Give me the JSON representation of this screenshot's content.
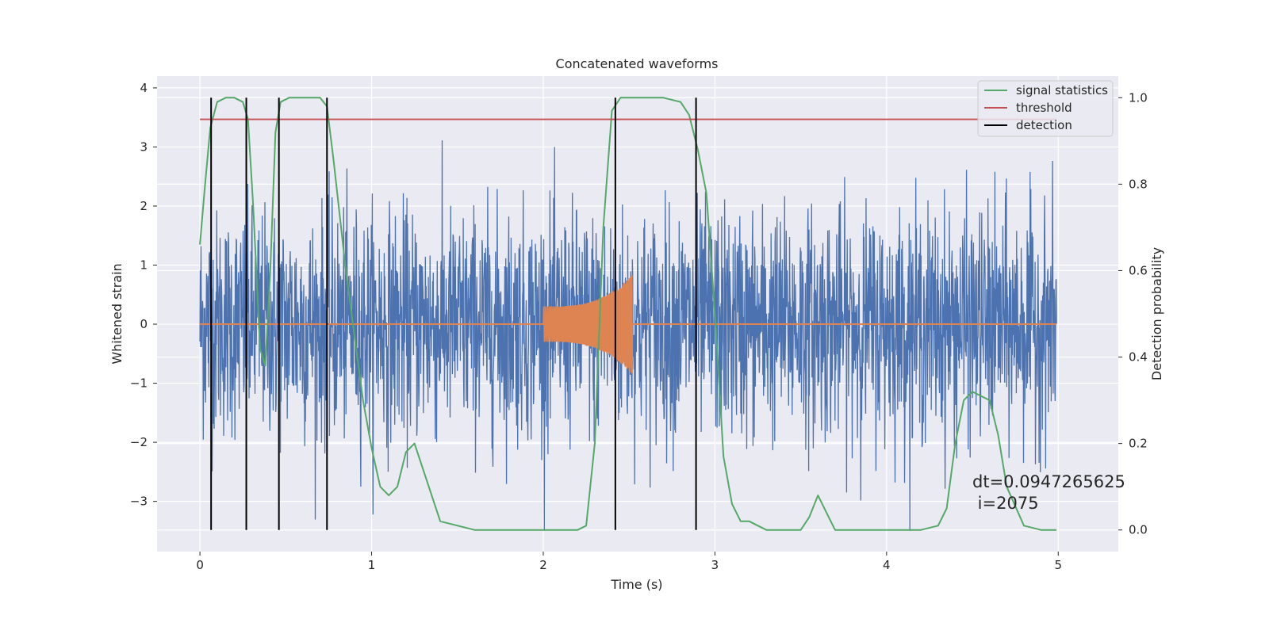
{
  "chart_data": {
    "type": "line",
    "title": "Concatenated waveforms",
    "xlabel": "Time (s)",
    "ylabel": "Whitened strain",
    "y2label": "Detection probability",
    "xlim": [
      -0.25,
      5.35
    ],
    "ylim": [
      -3.85,
      4.2
    ],
    "y2lim": [
      -0.05,
      1.05
    ],
    "x_ticks": [
      0,
      1,
      2,
      3,
      4,
      5
    ],
    "x_tick_labels": [
      "0",
      "1",
      "2",
      "3",
      "4",
      "5"
    ],
    "y_ticks": [
      4,
      3,
      2,
      1,
      0,
      -1,
      -2,
      -3
    ],
    "y_tick_labels": [
      "4",
      "3",
      "2",
      "1",
      "0",
      "−1",
      "−2",
      "−3"
    ],
    "y2_ticks": [
      1.0,
      0.8,
      0.6,
      0.4,
      0.2,
      0.0
    ],
    "y2_tick_labels": [
      "1.0",
      "0.8",
      "0.6",
      "0.4",
      "0.2",
      "0.0"
    ],
    "grid": true,
    "legend_position": "top-right",
    "colors": {
      "strain": "#4c72b0",
      "injection": "#dd8452",
      "statistic": "#55a868",
      "threshold": "#c44e52",
      "detection": "#000000",
      "background": "#eaeaf2"
    },
    "series": [
      {
        "name": "signal statistics",
        "axis": "right",
        "x": [
          0.0,
          0.03,
          0.06,
          0.1,
          0.15,
          0.2,
          0.25,
          0.28,
          0.31,
          0.35,
          0.38,
          0.41,
          0.44,
          0.47,
          0.52,
          0.6,
          0.7,
          0.74,
          0.78,
          0.85,
          0.95,
          1.0,
          1.05,
          1.1,
          1.15,
          1.2,
          1.25,
          1.3,
          1.4,
          1.6,
          1.8,
          2.0,
          2.1,
          2.2,
          2.25,
          2.3,
          2.35,
          2.4,
          2.45,
          2.5,
          2.6,
          2.7,
          2.8,
          2.85,
          2.9,
          2.95,
          3.0,
          3.05,
          3.1,
          3.15,
          3.2,
          3.25,
          3.3,
          3.4,
          3.5,
          3.55,
          3.6,
          3.65,
          3.7,
          3.8,
          4.0,
          4.2,
          4.3,
          4.35,
          4.4,
          4.45,
          4.5,
          4.6,
          4.65,
          4.7,
          4.8,
          4.9,
          4.99
        ],
        "y": [
          0.66,
          0.8,
          0.93,
          0.99,
          1.0,
          1.0,
          0.99,
          0.95,
          0.75,
          0.42,
          0.38,
          0.6,
          0.92,
          0.99,
          1.0,
          1.0,
          1.0,
          0.98,
          0.85,
          0.6,
          0.3,
          0.19,
          0.1,
          0.08,
          0.1,
          0.18,
          0.2,
          0.14,
          0.02,
          0.0,
          0.0,
          0.0,
          0.0,
          0.0,
          0.01,
          0.2,
          0.7,
          0.97,
          1.0,
          1.0,
          1.0,
          1.0,
          0.99,
          0.96,
          0.88,
          0.78,
          0.5,
          0.17,
          0.06,
          0.02,
          0.02,
          0.01,
          0.0,
          0.0,
          0.0,
          0.03,
          0.08,
          0.04,
          0.0,
          0.0,
          0.0,
          0.0,
          0.01,
          0.05,
          0.2,
          0.3,
          0.32,
          0.3,
          0.22,
          0.1,
          0.01,
          0.0,
          0.0
        ]
      },
      {
        "name": "threshold",
        "axis": "right",
        "x": [
          0.0,
          4.99
        ],
        "y": [
          0.95,
          0.95
        ]
      },
      {
        "name": "detection",
        "axis": "right",
        "type": "vertical_lines",
        "x": [
          0.065,
          0.27,
          0.46,
          0.74,
          2.42,
          2.89
        ],
        "y_range": [
          0.0,
          1.0
        ]
      },
      {
        "name": "",
        "axis": "left",
        "type": "noise",
        "x_range": [
          0.0,
          4.99
        ],
        "envelope_y": [
          -3.5,
          3.8
        ]
      },
      {
        "name": "",
        "axis": "left",
        "type": "chirp",
        "x_range": [
          2.0,
          2.52
        ],
        "amplitude_y": [
          0.3,
          0.85
        ]
      }
    ],
    "annotation": {
      "line1": "dt=0.0947265625",
      "line2": " i=2075"
    }
  }
}
